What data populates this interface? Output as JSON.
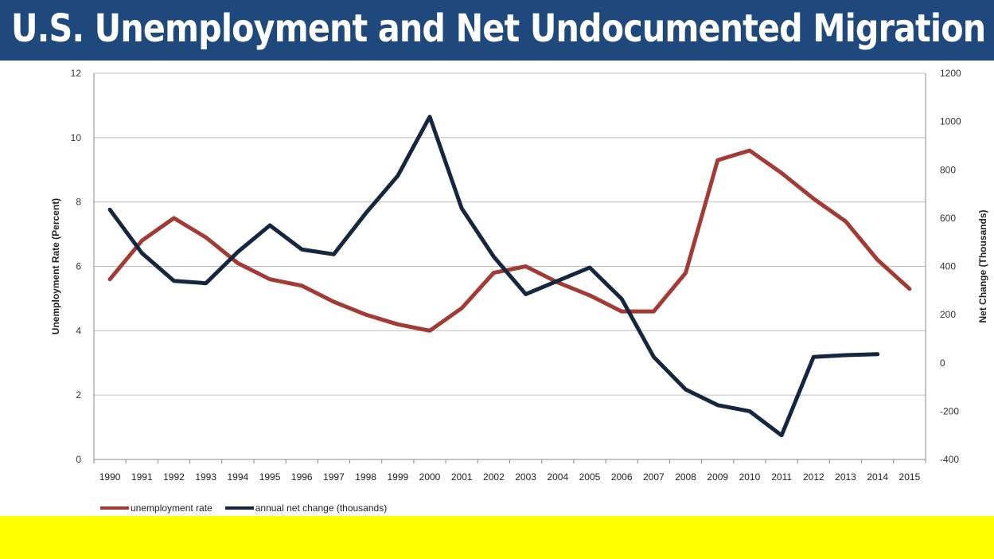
{
  "title": "U.S. Unemployment and Net Undocumented Migration",
  "colors": {
    "title_bg": "#1f497d",
    "unemployment": "#a33a34",
    "net_change": "#14273f",
    "band": "#ffff00"
  },
  "chart_data": {
    "type": "line",
    "title": "",
    "xlabel": "",
    "ylabel_left": "Unemployment Rate (Percent)",
    "ylabel_right": "Net Change (Thousands)",
    "ylim_left": [
      0,
      12
    ],
    "yticks_left": [
      "0",
      "2",
      "4",
      "6",
      "8",
      "10",
      "12"
    ],
    "ylim_right": [
      -400,
      1200
    ],
    "yticks_right": [
      "-400",
      "-200",
      "0",
      "200",
      "400",
      "600",
      "800",
      "1000",
      "1200"
    ],
    "grid": true,
    "legend": "bottom-left",
    "categories": [
      "1990",
      "1991",
      "1992",
      "1993",
      "1994",
      "1995",
      "1996",
      "1997",
      "1998",
      "1999",
      "2000",
      "2001",
      "2002",
      "2003",
      "2004",
      "2005",
      "2006",
      "2007",
      "2008",
      "2009",
      "2010",
      "2011",
      "2012",
      "2013",
      "2014",
      "2015"
    ],
    "series": [
      {
        "name": "unemployment rate",
        "axis": "left",
        "values": [
          5.6,
          6.8,
          7.5,
          6.9,
          6.1,
          5.6,
          5.4,
          4.9,
          4.5,
          4.2,
          4.0,
          4.7,
          5.8,
          6.0,
          5.5,
          5.1,
          4.6,
          4.6,
          5.8,
          9.3,
          9.6,
          8.9,
          8.1,
          7.4,
          6.2,
          5.3
        ]
      },
      {
        "name": "annual net change (thousands)",
        "axis": "right",
        "values": [
          635,
          455,
          340,
          330,
          460,
          570,
          470,
          450,
          620,
          775,
          1020,
          640,
          440,
          285,
          340,
          395,
          265,
          25,
          -110,
          -175,
          -200,
          -300,
          25,
          32,
          36,
          null
        ]
      }
    ]
  }
}
